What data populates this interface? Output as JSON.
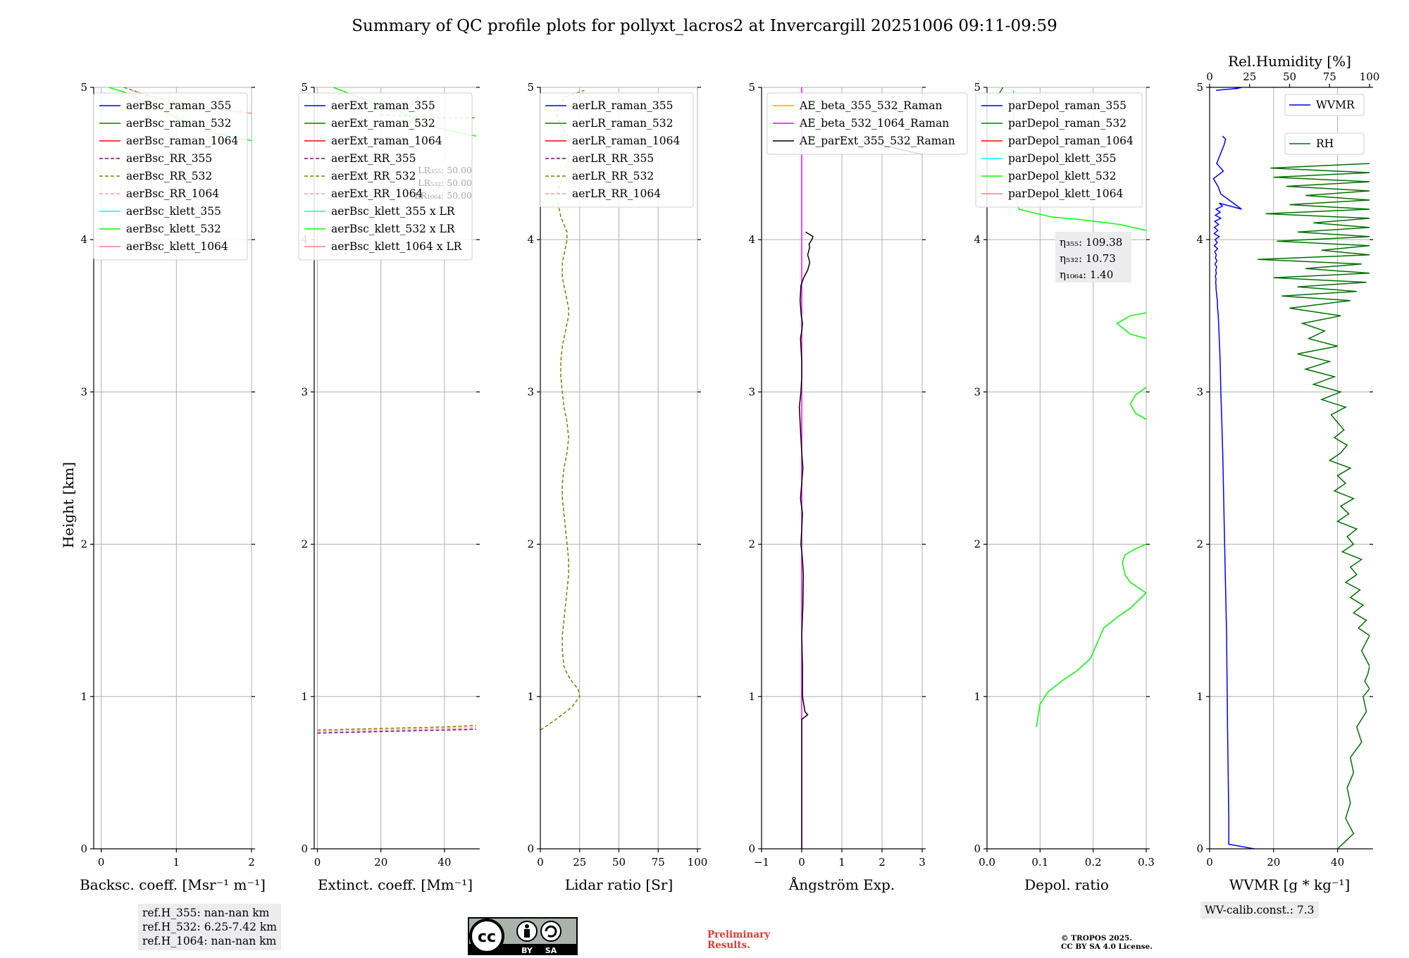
{
  "title": "Summary of QC profile plots for pollyxt_lacros2 at Invercargill 20251006 09:11-09:59",
  "ylabel": "Height [km]",
  "yticks": [
    0,
    1,
    2,
    3,
    4,
    5
  ],
  "panels": [
    {
      "id": "bsc",
      "xlabel": "Backsc. coeff. [Msr⁻¹ m⁻¹]",
      "xlim": [
        -0.1,
        2
      ],
      "xticks": [
        0,
        1,
        2
      ],
      "legend": [
        "aerBsc_raman_355",
        "aerBsc_raman_532",
        "aerBsc_raman_1064",
        "aerBsc_RR_355",
        "aerBsc_RR_532",
        "aerBsc_RR_1064",
        "aerBsc_klett_355",
        "aerBsc_klett_532",
        "aerBsc_klett_1064"
      ],
      "legend_colors": [
        "#0000ff",
        "#008000",
        "#ff0000",
        "#800080",
        "#808000",
        "#ff9e9e",
        "#00ffff",
        "#00ff00",
        "#f08080"
      ],
      "legend_dashed": [
        false,
        false,
        false,
        true,
        true,
        true,
        false,
        false,
        false
      ],
      "legend_pos": "top-right"
    },
    {
      "id": "ext",
      "xlabel": "Extinct. coeff. [Mm⁻¹]",
      "xlim": [
        -1,
        50
      ],
      "xticks": [
        0,
        20,
        40
      ],
      "legend": [
        "aerExt_raman_355",
        "aerExt_raman_532",
        "aerExt_raman_1064",
        "aerExt_RR_355",
        "aerExt_RR_532",
        "aerExt_RR_1064",
        "aerBsc_klett_355 x LR",
        "aerBsc_klett_532 x LR",
        "aerBsc_klett_1064 x LR"
      ],
      "legend_colors": [
        "#0000ff",
        "#008000",
        "#ff0000",
        "#800080",
        "#808000",
        "#ff9e9e",
        "#00ffff",
        "#00ff00",
        "#f08080"
      ],
      "legend_dashed": [
        false,
        false,
        false,
        true,
        true,
        true,
        false,
        false,
        false
      ],
      "legend_pos": "top-right",
      "lr_notes": [
        "LR₃₅₅: 50.00",
        "LR₅₃₂: 50.00",
        "LR₁₀₆₄: 50.00"
      ]
    },
    {
      "id": "lr",
      "xlabel": "Lidar ratio [Sr]",
      "xlim": [
        0,
        100
      ],
      "xticks": [
        0,
        25,
        50,
        75,
        100
      ],
      "legend": [
        "aerLR_raman_355",
        "aerLR_raman_532",
        "aerLR_raman_1064",
        "aerLR_RR_355",
        "aerLR_RR_532",
        "aerLR_RR_1064"
      ],
      "legend_colors": [
        "#0000ff",
        "#008000",
        "#ff0000",
        "#800080",
        "#808000",
        "#ff9e9e"
      ],
      "legend_dashed": [
        false,
        false,
        false,
        true,
        true,
        true
      ],
      "legend_pos": "top-right"
    },
    {
      "id": "ae",
      "xlabel": "Ångström Exp.",
      "xlim": [
        -1,
        3
      ],
      "xticks": [
        -1,
        0,
        1,
        2,
        3
      ],
      "xtick_labels": [
        "−1",
        "0",
        "1",
        "2",
        "3"
      ],
      "legend": [
        "AE_beta_355_532_Raman",
        "AE_beta_532_1064_Raman",
        "AE_parExt_355_532_Raman"
      ],
      "legend_colors": [
        "#ffa500",
        "#ff00ff",
        "#000000"
      ],
      "legend_dashed": [
        false,
        false,
        false
      ],
      "legend_pos": "top-right"
    },
    {
      "id": "dep",
      "xlabel": "Depol. ratio",
      "xlim": [
        0,
        0.3
      ],
      "xticks": [
        0.0,
        0.1,
        0.2,
        0.3
      ],
      "xtick_labels": [
        "0.0",
        "0.1",
        "0.2",
        "0.3"
      ],
      "legend": [
        "parDepol_raman_355",
        "parDepol_raman_532",
        "parDepol_raman_1064",
        "parDepol_klett_355",
        "parDepol_klett_532",
        "parDepol_klett_1064"
      ],
      "legend_colors": [
        "#0000ff",
        "#008000",
        "#ff0000",
        "#00ffff",
        "#00ff00",
        "#f08080"
      ],
      "legend_dashed": [
        false,
        false,
        false,
        false,
        false,
        false
      ],
      "legend_pos": "top-right",
      "eta_notes": [
        "η₃₅₅: 109.38",
        "η₅₃₂: 10.73",
        "η₁₀₆₄: 1.40"
      ]
    },
    {
      "id": "wv",
      "xlabel": "WVMR [g * kg⁻¹]",
      "xlim": [
        0,
        50
      ],
      "xticks": [
        0,
        20,
        40
      ],
      "top_xlabel": "Rel.Humidity [%]",
      "top_xlim": [
        0,
        100
      ],
      "top_xticks": [
        0,
        25,
        50,
        75,
        100
      ],
      "legend": [
        "WVMR",
        "RH"
      ],
      "legend_colors": [
        "#0000ff",
        "#007000"
      ],
      "legend_dashed": [
        false,
        false
      ],
      "legend_pos": "top-right"
    }
  ],
  "chart_data": {
    "type": "line",
    "title": "Summary of QC profile plots for pollyxt_lacros2 at Invercargill 20251006 09:11-09:59",
    "ylabel": "Height [km]",
    "ylim": [
      0,
      5
    ],
    "grid": true,
    "series": [
      {
        "name": "aerBsc_klett_532",
        "panel": "bsc",
        "x": [
          0.1,
          0.3,
          0.6,
          1.0,
          1.5,
          2.0
        ],
        "y": [
          5.0,
          4.97,
          4.9,
          4.8,
          4.7,
          4.65
        ]
      },
      {
        "name": "aerBsc_RR_532",
        "panel": "bsc",
        "x": [
          0.3,
          0.6,
          1.0,
          1.5,
          2.0
        ],
        "y": [
          5.0,
          4.95,
          4.9,
          4.86,
          4.83
        ]
      },
      {
        "name": "aerBsc_RR_1064",
        "panel": "bsc",
        "x": [
          0.4,
          0.8,
          1.2,
          1.6,
          2.0
        ],
        "y": [
          4.98,
          4.93,
          4.88,
          4.85,
          4.83
        ]
      },
      {
        "name": "aerExt_RR_355",
        "panel": "ext",
        "x": [
          0,
          10,
          20,
          30,
          40,
          50
        ],
        "y": [
          0.76,
          0.765,
          0.77,
          0.775,
          0.78,
          0.785
        ]
      },
      {
        "name": "aerExt_RR_532",
        "panel": "ext",
        "x": [
          0,
          10,
          20,
          30,
          40,
          50
        ],
        "y": [
          0.78,
          0.785,
          0.79,
          0.795,
          0.8,
          0.81
        ]
      },
      {
        "name": "aerExt_RR_1064",
        "panel": "ext",
        "x": [
          0,
          10,
          20,
          30,
          40,
          50
        ],
        "y": [
          0.77,
          0.775,
          0.78,
          0.785,
          0.79,
          0.795
        ]
      },
      {
        "name": "aerBsc_klett_532 x LR",
        "panel": "ext",
        "x": [
          5,
          15,
          25,
          35,
          45,
          50
        ],
        "y": [
          5.0,
          4.92,
          4.85,
          4.75,
          4.7,
          4.68
        ]
      },
      {
        "name": "aerExt_RR_532",
        "panel": "ext",
        "x": [
          20,
          30,
          40,
          50
        ],
        "y": [
          4.82,
          4.81,
          4.8,
          4.8
        ]
      },
      {
        "name": "aerLR_RR_532",
        "panel": "lr",
        "x": [
          0,
          10,
          20,
          25,
          24,
          20,
          17,
          15,
          14,
          14,
          15,
          16,
          17,
          18,
          18,
          17,
          16,
          15,
          14,
          14,
          15,
          17,
          18,
          17,
          15,
          14,
          13,
          13,
          14,
          16,
          17,
          18,
          18,
          17,
          16,
          15,
          14,
          14,
          14,
          15,
          16,
          17,
          17,
          15,
          13,
          12,
          11,
          11,
          12,
          14,
          17,
          19,
          21,
          20,
          16,
          13,
          11,
          11,
          12,
          13,
          15,
          17,
          19,
          22,
          25,
          28
        ],
        "y": [
          0.78,
          0.85,
          0.93,
          1.0,
          1.05,
          1.1,
          1.15,
          1.2,
          1.3,
          1.4,
          1.5,
          1.6,
          1.7,
          1.8,
          1.9,
          2.0,
          2.1,
          2.2,
          2.3,
          2.4,
          2.5,
          2.6,
          2.7,
          2.8,
          2.9,
          3.0,
          3.1,
          3.2,
          3.3,
          3.4,
          3.45,
          3.5,
          3.55,
          3.6,
          3.65,
          3.7,
          3.75,
          3.8,
          3.85,
          3.9,
          3.95,
          4.0,
          4.05,
          4.1,
          4.15,
          4.2,
          4.25,
          4.3,
          4.35,
          4.4,
          4.5,
          4.55,
          4.6,
          4.65,
          4.7,
          4.75,
          4.8,
          4.85,
          4.88,
          4.9,
          4.92,
          4.94,
          4.95,
          4.96,
          4.97,
          4.98
        ]
      },
      {
        "name": "AE_beta_532_1064_Raman",
        "panel": "ae",
        "x": [
          0,
          0,
          0,
          0,
          0,
          0
        ],
        "y": [
          0,
          1,
          2,
          3,
          4,
          5
        ]
      },
      {
        "name": "AE_parExt_355_532_Raman",
        "panel": "ae",
        "x": [
          0,
          0,
          0.15,
          0.08,
          0.02,
          0.02,
          0.0,
          0.03,
          0.04,
          0.02,
          -0.02,
          0.0,
          0.02,
          -0.03,
          0.0,
          0.03,
          0.0,
          -0.04,
          -0.06,
          -0.02,
          0.0,
          0.0,
          -0.02,
          -0.03,
          0.0,
          0.02,
          -0.01,
          -0.04,
          -0.02,
          0.05,
          0.15,
          0.2,
          0.15,
          0.2,
          0.18,
          0.25,
          0.28,
          0.1
        ],
        "y": [
          0.0,
          0.85,
          0.88,
          0.9,
          1.0,
          1.2,
          1.4,
          1.6,
          1.8,
          1.9,
          2.0,
          2.1,
          2.2,
          2.3,
          2.4,
          2.5,
          2.6,
          2.8,
          2.9,
          3.0,
          3.1,
          3.2,
          3.3,
          3.35,
          3.4,
          3.45,
          3.5,
          3.6,
          3.7,
          3.75,
          3.8,
          3.85,
          3.9,
          3.95,
          3.97,
          4.0,
          4.02,
          4.05
        ]
      },
      {
        "name": "AE_parExt_355_532_Raman",
        "panel": "ae",
        "x": [
          1.5,
          2,
          2.5,
          3
        ],
        "y": [
          4.65,
          4.62,
          4.59,
          4.56
        ]
      },
      {
        "name": "parDepol_klett_532",
        "panel": "dep",
        "x": [
          0.093,
          0.1,
          0.115,
          0.14,
          0.17,
          0.195,
          0.205,
          0.22,
          0.245,
          0.27,
          0.3
        ],
        "y": [
          0.8,
          0.95,
          1.03,
          1.1,
          1.17,
          1.25,
          1.33,
          1.45,
          1.52,
          1.58,
          1.68
        ]
      },
      {
        "name": "parDepol_klett_532",
        "panel": "dep",
        "x": [
          0.3,
          0.27,
          0.26,
          0.255,
          0.26,
          0.28,
          0.3
        ],
        "y": [
          1.68,
          1.75,
          1.8,
          1.88,
          1.93,
          1.97,
          2.0
        ]
      },
      {
        "name": "parDepol_klett_532",
        "panel": "dep",
        "x": [
          0.3,
          0.28,
          0.27,
          0.28,
          0.3
        ],
        "y": [
          2.82,
          2.86,
          2.92,
          2.98,
          3.03
        ]
      },
      {
        "name": "parDepol_klett_532",
        "panel": "dep",
        "x": [
          0.3,
          0.27,
          0.245,
          0.27,
          0.3
        ],
        "y": [
          3.35,
          3.38,
          3.45,
          3.5,
          3.52
        ]
      },
      {
        "name": "parDepol_klett_532",
        "panel": "dep",
        "x": [
          0.3,
          0.25,
          0.18,
          0.12,
          0.06,
          0.052,
          0.05,
          0.05,
          0.05
        ],
        "y": [
          4.06,
          4.1,
          4.13,
          4.15,
          4.2,
          4.3,
          4.5,
          4.8,
          4.98
        ]
      },
      {
        "name": "parDepol_raman_532",
        "panel": "dep",
        "x": [
          0.02,
          0.025,
          0.03
        ],
        "y": [
          4.95,
          4.97,
          5.0
        ]
      },
      {
        "name": "WVMR",
        "panel": "wv",
        "x": [
          14,
          6,
          6,
          5.8,
          5.6,
          5.5,
          5.4,
          5.3,
          5.1,
          4.9,
          4.7,
          4.5,
          4.3,
          4.1,
          3.8,
          3.5,
          3.3,
          3.1,
          2.9,
          2.7,
          2.5,
          2.4,
          2.3,
          2.2,
          2.1,
          2.0,
          2.0,
          1.9,
          2.0,
          1.8,
          2.1,
          1.9,
          2.2,
          1.7,
          2.3,
          1.8,
          2.1,
          1.6,
          2.5,
          1.5,
          2.4,
          1.7,
          3.0,
          1.4,
          2.6,
          1.5,
          2.8,
          1.6,
          3.5,
          1.8,
          3.3,
          2.0,
          4.0,
          3.0,
          10,
          3.5,
          2.6,
          1.2,
          4.3,
          2.2,
          4.5,
          5,
          4
        ],
        "y": [
          0,
          0.03,
          0.2,
          0.5,
          0.8,
          1.0,
          1.2,
          1.4,
          1.6,
          1.8,
          2.0,
          2.2,
          2.4,
          2.6,
          2.8,
          3.0,
          3.2,
          3.3,
          3.4,
          3.5,
          3.55,
          3.6,
          3.62,
          3.64,
          3.66,
          3.68,
          3.7,
          3.72,
          3.74,
          3.76,
          3.78,
          3.8,
          3.82,
          3.84,
          3.86,
          3.88,
          3.9,
          3.92,
          3.94,
          3.96,
          3.98,
          4.0,
          4.02,
          4.04,
          4.06,
          4.08,
          4.1,
          4.12,
          4.14,
          4.16,
          4.18,
          4.2,
          4.22,
          4.24,
          4.2,
          4.3,
          4.35,
          4.4,
          4.45,
          4.5,
          4.62,
          4.66,
          4.68
        ]
      },
      {
        "name": "WVMR",
        "panel": "wv",
        "x": [
          2,
          7,
          10,
          9,
          8
        ],
        "y": [
          4.98,
          4.99,
          5.0,
          4.995,
          4.99
        ]
      },
      {
        "name": "RH",
        "panel": "wv",
        "x": [
          80,
          90,
          85,
          88,
          86,
          90,
          88,
          95,
          92,
          98,
          96,
          100,
          97,
          99,
          100,
          95,
          100,
          93,
          98,
          90,
          96,
          88,
          94,
          85,
          92,
          88,
          95,
          83,
          90,
          86,
          92,
          80,
          87,
          82,
          90,
          78,
          85,
          80,
          88,
          75,
          82,
          86,
          78,
          84,
          80,
          76,
          85,
          70,
          82,
          65,
          78,
          60,
          75,
          55,
          80,
          62,
          72,
          58,
          82,
          50,
          88,
          45,
          92,
          55,
          98,
          40,
          100,
          60,
          95,
          30,
          100,
          70,
          100,
          42,
          100,
          55,
          100,
          65,
          100,
          35,
          100,
          50,
          100,
          60,
          100,
          48,
          100,
          40,
          100,
          38,
          100
        ],
        "y": [
          0.0,
          0.1,
          0.2,
          0.3,
          0.4,
          0.5,
          0.6,
          0.7,
          0.8,
          0.9,
          1.0,
          1.05,
          1.1,
          1.15,
          1.2,
          1.3,
          1.4,
          1.45,
          1.5,
          1.55,
          1.6,
          1.65,
          1.7,
          1.75,
          1.8,
          1.85,
          1.9,
          1.95,
          2.0,
          2.05,
          2.1,
          2.15,
          2.2,
          2.25,
          2.3,
          2.35,
          2.4,
          2.45,
          2.5,
          2.55,
          2.6,
          2.65,
          2.7,
          2.75,
          2.8,
          2.85,
          2.9,
          2.95,
          3.0,
          3.05,
          3.1,
          3.15,
          3.2,
          3.25,
          3.3,
          3.35,
          3.4,
          3.45,
          3.5,
          3.55,
          3.6,
          3.63,
          3.66,
          3.69,
          3.72,
          3.75,
          3.78,
          3.81,
          3.84,
          3.87,
          3.9,
          3.93,
          3.96,
          3.99,
          4.02,
          4.05,
          4.08,
          4.11,
          4.14,
          4.17,
          4.2,
          4.23,
          4.26,
          4.29,
          4.32,
          4.35,
          4.38,
          4.41,
          4.44,
          4.47,
          4.5
        ]
      }
    ]
  },
  "ref_heights": [
    "ref.H_355: nan-nan km",
    "ref.H_532: 6.25-7.42 km",
    "ref.H_1064: nan-nan km"
  ],
  "wv_calib": "WV-calib.const.: 7.3",
  "license_badge": [
    "BY",
    "SA"
  ],
  "preliminary": [
    "Preliminary",
    "Results."
  ],
  "copyright": [
    "© TROPOS 2025.",
    "CC BY SA 4.0 License."
  ]
}
